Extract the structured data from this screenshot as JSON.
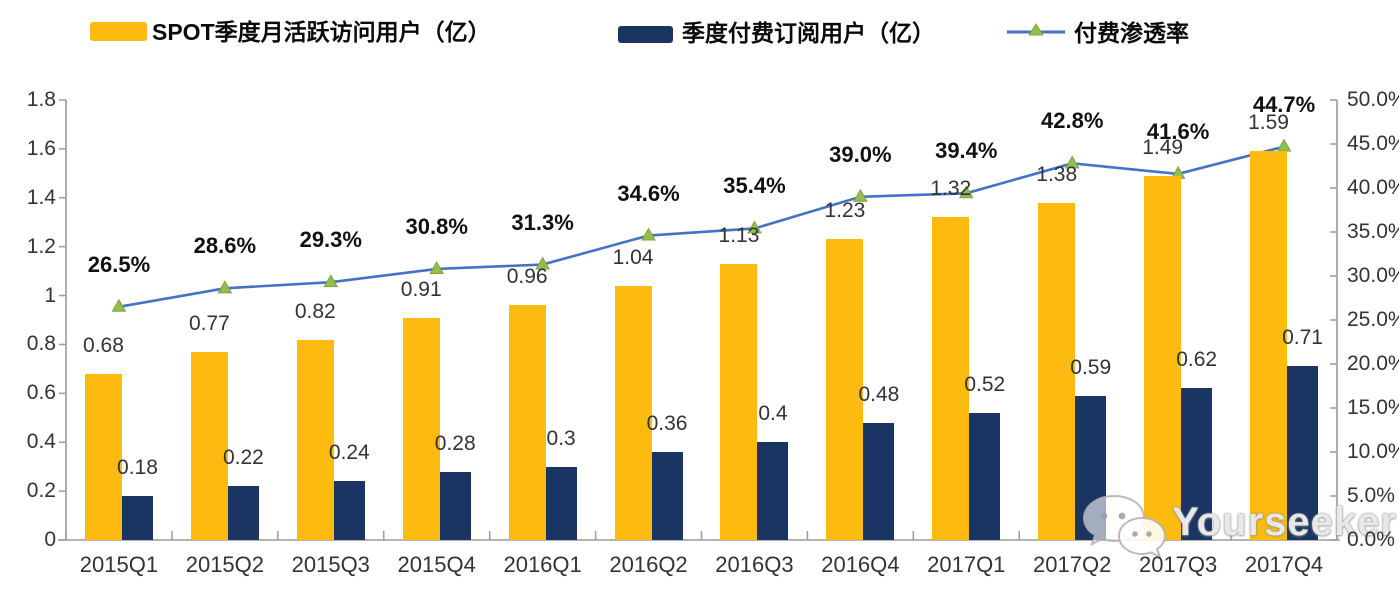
{
  "legend": [
    {
      "label": "SPOT季度月活跃访问用户（亿）",
      "swatch": "bar",
      "color": "#FDBB10"
    },
    {
      "label": "季度付费订阅用户（亿）",
      "swatch": "bar",
      "color": "#1A3464"
    },
    {
      "label": "付费渗透率",
      "swatch": "line-triangle",
      "color": "#4472C4",
      "marker_color": "#94BD4F"
    }
  ],
  "watermark": {
    "text": "Yourseeker",
    "icon": "wechat-chat-bubbles"
  },
  "colors": {
    "mau_bar": "#FDBB10",
    "subs_bar": "#1A3464",
    "line": "#4472C4",
    "marker": "#94BD4F",
    "marker_edge": "#7FA63F",
    "axis": "#9B9B9B",
    "value_label": "#333333",
    "pct_label": "#111111",
    "background": "#FFFFFF"
  },
  "chart_data": {
    "type": "bar+line-combo",
    "categories": [
      "2015Q1",
      "2015Q2",
      "2015Q3",
      "2015Q4",
      "2016Q1",
      "2016Q2",
      "2016Q3",
      "2016Q4",
      "2017Q1",
      "2017Q2",
      "2017Q3",
      "2017Q4"
    ],
    "series": [
      {
        "name": "SPOT季度月活跃访问用户（亿）",
        "type": "bar",
        "axis": "left",
        "values": [
          0.68,
          0.77,
          0.82,
          0.91,
          0.96,
          1.04,
          1.13,
          1.23,
          1.32,
          1.38,
          1.49,
          1.59
        ],
        "labels": [
          "0.68",
          "0.77",
          "0.82",
          "0.91",
          "0.96",
          "1.04",
          "1.13",
          "1.23",
          "1.32",
          "1.38",
          "1.49",
          "1.59"
        ]
      },
      {
        "name": "季度付费订阅用户（亿）",
        "type": "bar",
        "axis": "left",
        "values": [
          0.18,
          0.22,
          0.24,
          0.28,
          0.3,
          0.36,
          0.4,
          0.48,
          0.52,
          0.59,
          0.62,
          0.71
        ],
        "labels": [
          "0.18",
          "0.22",
          "0.24",
          "0.28",
          "0.3",
          "0.36",
          "0.4",
          "0.48",
          "0.52",
          "0.59",
          "0.62",
          "0.71"
        ]
      },
      {
        "name": "付费渗透率",
        "type": "line",
        "axis": "right",
        "values": [
          26.5,
          28.6,
          29.3,
          30.8,
          31.3,
          34.6,
          35.4,
          39.0,
          39.4,
          42.8,
          41.6,
          44.7
        ],
        "labels": [
          "26.5%",
          "28.6%",
          "29.3%",
          "30.8%",
          "31.3%",
          "34.6%",
          "35.4%",
          "39.0%",
          "39.4%",
          "42.8%",
          "41.6%",
          "44.7%"
        ]
      }
    ],
    "left_axis": {
      "min": 0,
      "max": 1.8,
      "step": 0.2,
      "ticks": [
        "0",
        "0.2",
        "0.4",
        "0.6",
        "0.8",
        "1",
        "1.2",
        "1.4",
        "1.6",
        "1.8"
      ]
    },
    "right_axis": {
      "min": 0,
      "max": 50,
      "step": 5,
      "ticks": [
        "0.0%",
        "5.0%",
        "10.0%",
        "15.0%",
        "20.0%",
        "25.0%",
        "30.0%",
        "35.0%",
        "40.0%",
        "45.0%",
        "50.0%"
      ]
    },
    "grid": false,
    "legend_position": "top"
  }
}
